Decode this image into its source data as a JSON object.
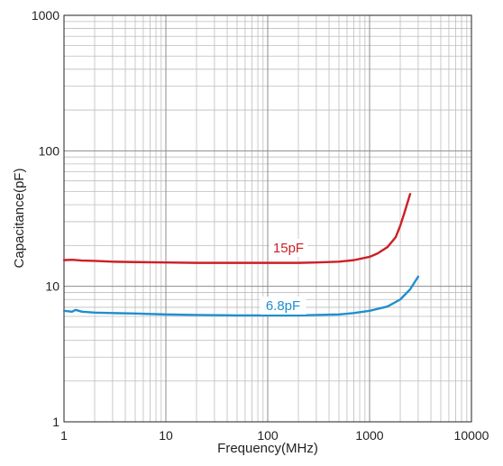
{
  "chart_data": {
    "type": "line",
    "title": "",
    "xlabel": "Frequency(MHz)",
    "ylabel": "Capacitance(pF)",
    "xscale": "log",
    "yscale": "log",
    "xlim": [
      1,
      10000
    ],
    "ylim": [
      1,
      1000
    ],
    "grid": true,
    "legend": "none (inline series labels)",
    "x_tick_labels": [
      "1",
      "10",
      "100",
      "1000",
      "10000"
    ],
    "y_tick_labels": [
      "1",
      "10",
      "100",
      "1000"
    ],
    "series": [
      {
        "name": "15pF",
        "color": "#cc1f26",
        "x": [
          1,
          1.2,
          1.5,
          2,
          3,
          5,
          10,
          20,
          50,
          100,
          200,
          300,
          500,
          700,
          1000,
          1200,
          1500,
          1800,
          2000,
          2200,
          2500
        ],
        "y": [
          15.6,
          15.7,
          15.5,
          15.4,
          15.2,
          15.1,
          15.0,
          14.9,
          14.9,
          14.9,
          14.9,
          15.0,
          15.2,
          15.6,
          16.5,
          17.5,
          19.5,
          23.0,
          28.0,
          35.0,
          48.0
        ]
      },
      {
        "name": "6.8pF",
        "color": "#1f8fcf",
        "x": [
          1,
          1.2,
          1.3,
          1.5,
          2,
          3,
          5,
          10,
          20,
          50,
          100,
          200,
          300,
          500,
          700,
          1000,
          1500,
          2000,
          2500,
          3000
        ],
        "y": [
          6.6,
          6.5,
          6.7,
          6.5,
          6.4,
          6.35,
          6.3,
          6.2,
          6.15,
          6.1,
          6.1,
          6.1,
          6.15,
          6.2,
          6.35,
          6.6,
          7.1,
          8.0,
          9.5,
          11.8
        ]
      }
    ]
  }
}
